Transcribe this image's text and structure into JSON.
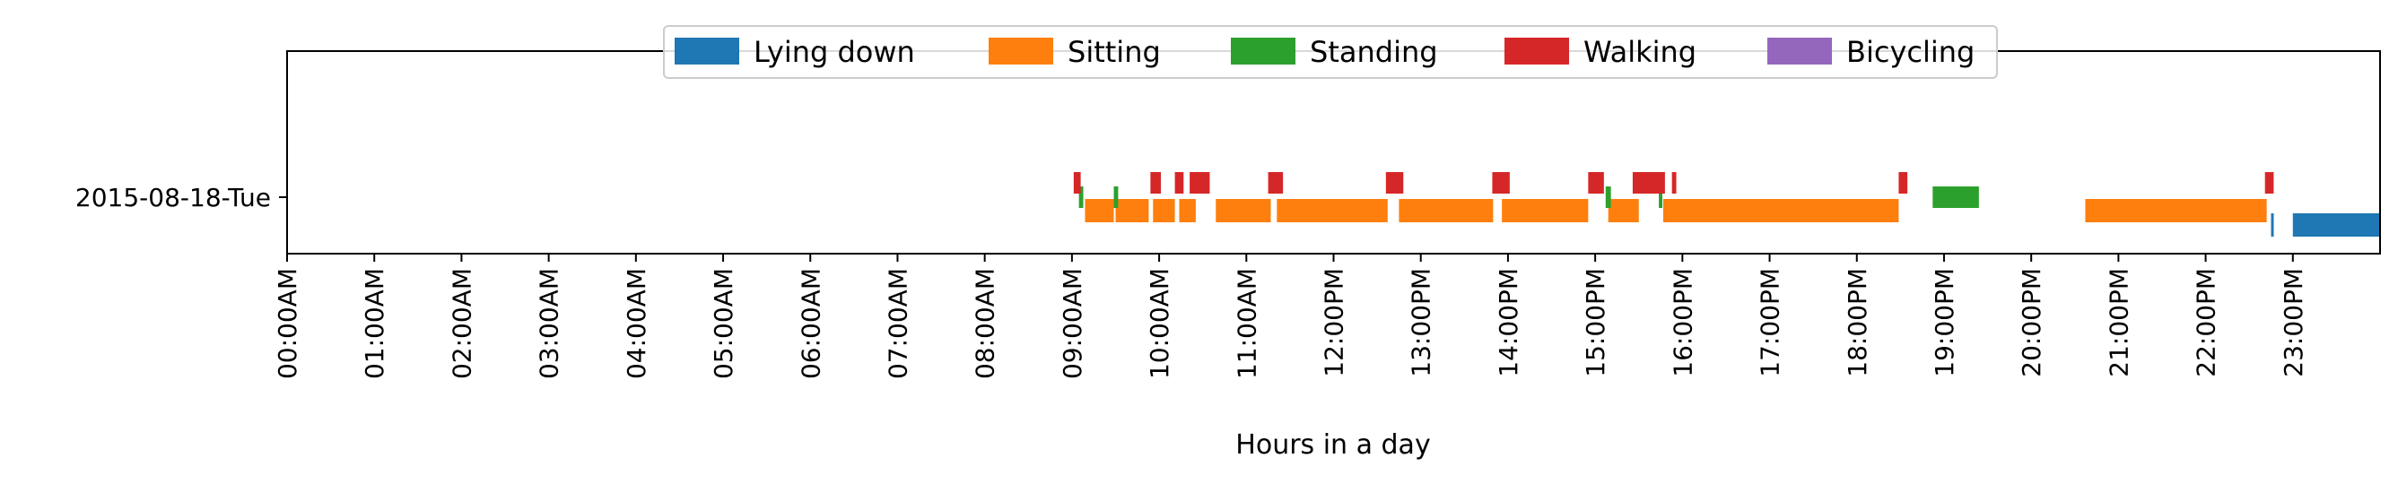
{
  "chart_data": {
    "type": "timeline",
    "xlabel": "Hours in a day",
    "ylabel": "",
    "xlim": [
      0,
      24
    ],
    "x_tick_labels": [
      "00:00AM",
      "01:00AM",
      "02:00AM",
      "03:00AM",
      "04:00AM",
      "05:00AM",
      "06:00AM",
      "07:00AM",
      "08:00AM",
      "09:00AM",
      "10:00AM",
      "11:00AM",
      "12:00PM",
      "13:00PM",
      "14:00PM",
      "15:00PM",
      "16:00PM",
      "17:00PM",
      "18:00PM",
      "19:00PM",
      "20:00PM",
      "21:00PM",
      "22:00PM",
      "23:00PM"
    ],
    "categories": [
      "2015-08-18-Tue"
    ],
    "legend_placement": "top-center",
    "grid": false,
    "series": [
      {
        "name": "Lying down",
        "color": "#1f77b4",
        "intervals": [
          [
            22.75,
            22.78
          ],
          [
            23.0,
            24.0
          ]
        ]
      },
      {
        "name": "Sitting",
        "color": "#ff7f0e",
        "intervals": [
          [
            9.15,
            9.48
          ],
          [
            9.5,
            9.88
          ],
          [
            9.93,
            10.18
          ],
          [
            10.23,
            10.42
          ],
          [
            10.65,
            11.28
          ],
          [
            11.35,
            12.62
          ],
          [
            12.75,
            13.83
          ],
          [
            13.93,
            14.92
          ],
          [
            15.15,
            15.5
          ],
          [
            15.78,
            18.48
          ],
          [
            20.62,
            22.7
          ]
        ]
      },
      {
        "name": "Standing",
        "color": "#2ca02c",
        "intervals": [
          [
            9.08,
            9.13
          ],
          [
            9.48,
            9.53
          ],
          [
            15.12,
            15.18
          ],
          [
            15.73,
            15.77
          ],
          [
            18.87,
            19.4
          ]
        ]
      },
      {
        "name": "Walking",
        "color": "#d62728",
        "intervals": [
          [
            9.02,
            9.1
          ],
          [
            9.9,
            10.02
          ],
          [
            10.18,
            10.28
          ],
          [
            10.35,
            10.58
          ],
          [
            11.25,
            11.42
          ],
          [
            12.6,
            12.8
          ],
          [
            13.82,
            14.02
          ],
          [
            14.92,
            15.1
          ],
          [
            15.43,
            15.8
          ],
          [
            15.88,
            15.93
          ],
          [
            18.48,
            18.58
          ],
          [
            22.68,
            22.78
          ]
        ]
      },
      {
        "name": "Bicycling",
        "color": "#9467bd",
        "intervals": []
      }
    ]
  }
}
